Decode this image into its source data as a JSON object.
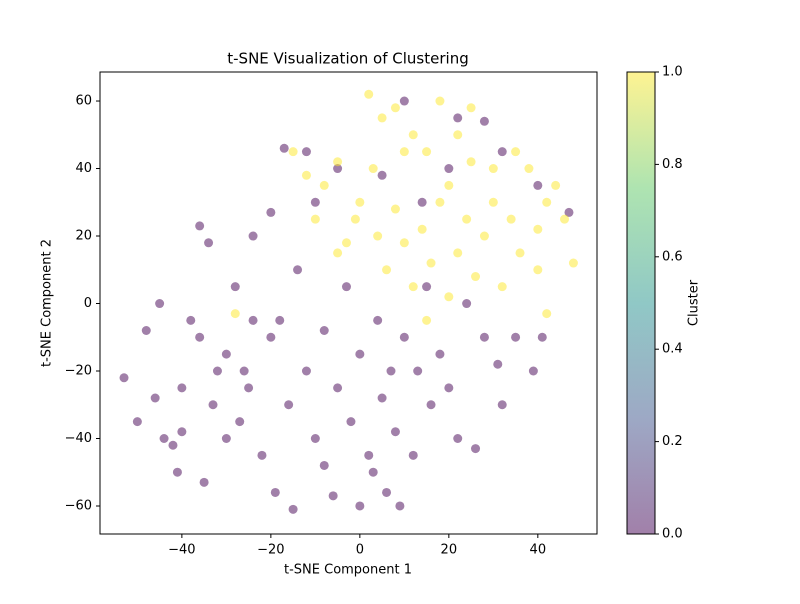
{
  "chart_data": {
    "type": "scatter",
    "title": "t-SNE Visualization of Clustering",
    "x_label": "t-SNE Component 1",
    "y_label": "t-SNE Component 2",
    "colorbar_label": "Cluster",
    "colormap_colors": [
      "#440154",
      "#3b528b",
      "#21918c",
      "#5ec962",
      "#fde725"
    ],
    "alpha": 0.5,
    "xlim": [
      -58.4,
      53.3
    ],
    "ylim": [
      -68.3,
      68.6
    ],
    "clim": [
      0,
      1
    ],
    "xticks": [
      {
        "value": -40,
        "label": "−40"
      },
      {
        "value": -20,
        "label": "−20"
      },
      0,
      20,
      40
    ],
    "yticks": [
      {
        "value": -60,
        "label": "−60"
      },
      {
        "value": -40,
        "label": "−40"
      },
      {
        "value": -20,
        "label": "−20"
      },
      0,
      20,
      40,
      60
    ],
    "cticks": [
      {
        "value": 0,
        "label": "0.0"
      },
      {
        "value": 0.2,
        "label": "0.2"
      },
      {
        "value": 0.4,
        "label": "0.4"
      },
      {
        "value": 0.6,
        "label": "0.6"
      },
      {
        "value": 0.8,
        "label": "0.8"
      },
      {
        "value": 1,
        "label": "1.0"
      }
    ],
    "series": [
      {
        "x": [
          -53,
          -50,
          -48,
          -46,
          -44,
          -42,
          -40,
          -41,
          -38,
          -36,
          -35,
          -34,
          -32,
          -30,
          -28,
          -27,
          -25,
          -24,
          -22,
          -20,
          -20,
          -19,
          -18,
          -17,
          -16,
          -15,
          -14,
          -12,
          -10,
          -10,
          -8,
          -6,
          -5,
          -3,
          -2,
          0,
          0,
          2,
          4,
          5,
          6,
          8,
          9,
          10,
          12,
          13,
          15,
          16,
          18,
          20,
          22,
          24,
          26,
          28,
          31,
          32,
          35,
          39,
          41,
          -12,
          -5,
          5,
          10,
          22,
          28,
          32,
          40,
          47,
          20,
          14,
          -30,
          -40,
          -45,
          -36,
          -24,
          -8,
          3,
          -26,
          -33,
          7,
          2,
          5,
          8,
          12,
          15,
          18,
          22,
          25,
          -15,
          -12,
          -8,
          -5,
          0,
          3,
          -3,
          -5,
          -1,
          4,
          6,
          8,
          10,
          12,
          14,
          16,
          18,
          20,
          22,
          24,
          26,
          28,
          30,
          32,
          34,
          36,
          38,
          40,
          42,
          44,
          46,
          48,
          42,
          30,
          20,
          -28,
          15,
          35,
          25,
          10,
          -10,
          40
        ],
        "y": [
          -22,
          -35,
          -8,
          -28,
          -40,
          -42,
          -38,
          -50,
          -5,
          -10,
          -53,
          18,
          -20,
          -15,
          5,
          -35,
          -25,
          20,
          -45,
          -10,
          27,
          -56,
          -5,
          46,
          -30,
          -61,
          10,
          -20,
          -40,
          30,
          -8,
          -57,
          -25,
          5,
          -35,
          -60,
          -15,
          -45,
          -5,
          -28,
          -56,
          -38,
          -60,
          -10,
          -45,
          -20,
          5,
          -30,
          -15,
          -25,
          -40,
          0,
          -43,
          -10,
          -18,
          -30,
          -10,
          -20,
          -10,
          45,
          40,
          38,
          60,
          55,
          54,
          45,
          35,
          27,
          40,
          30,
          -40,
          -25,
          0,
          23,
          -5,
          -48,
          -50,
          -20,
          -30,
          -20,
          62,
          55,
          58,
          50,
          45,
          60,
          50,
          58,
          45,
          38,
          35,
          42,
          30,
          40,
          18,
          15,
          25,
          20,
          10,
          28,
          18,
          5,
          22,
          12,
          30,
          2,
          15,
          25,
          8,
          20,
          30,
          5,
          25,
          15,
          40,
          22,
          30,
          35,
          25,
          12,
          -3,
          40,
          35,
          -3,
          -5,
          45,
          42,
          45,
          25,
          10
        ],
        "c": [
          0,
          0,
          0,
          0,
          0,
          0,
          0,
          0,
          0,
          0,
          0,
          0,
          0,
          0,
          0,
          0,
          0,
          0,
          0,
          0,
          0,
          0,
          0,
          0,
          0,
          0,
          0,
          0,
          0,
          0,
          0,
          0,
          0,
          0,
          0,
          0,
          0,
          0,
          0,
          0,
          0,
          0,
          0,
          0,
          0,
          0,
          0,
          0,
          0,
          0,
          0,
          0,
          0,
          0,
          0,
          0,
          0,
          0,
          0,
          0,
          0,
          0,
          0,
          0,
          0,
          0,
          0,
          0,
          0,
          0,
          0,
          0,
          0,
          0,
          0,
          0,
          0,
          0,
          0,
          0,
          1,
          1,
          1,
          1,
          1,
          1,
          1,
          1,
          1,
          1,
          1,
          1,
          1,
          1,
          1,
          1,
          1,
          1,
          1,
          1,
          1,
          1,
          1,
          1,
          1,
          1,
          1,
          1,
          1,
          1,
          1,
          1,
          1,
          1,
          1,
          1,
          1,
          1,
          1,
          1,
          1,
          1,
          1,
          1,
          1,
          1,
          1,
          1,
          1,
          1
        ]
      }
    ]
  }
}
